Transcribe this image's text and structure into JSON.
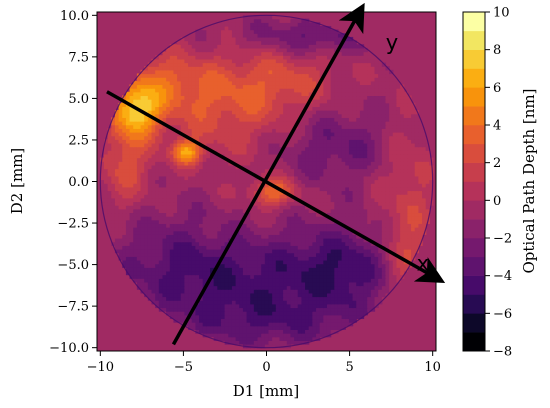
{
  "chart_data": {
    "type": "heatmap",
    "xlabel": "D1 [mm]",
    "ylabel": "D2 [mm]",
    "colorbar_label": "Optical Path Depth [nm]",
    "xlim": [
      -10.2,
      10.2
    ],
    "ylim": [
      -10.2,
      10.2
    ],
    "x_ticks": [
      -10,
      -5,
      0,
      5,
      10
    ],
    "x_tick_labels": [
      "−10",
      "−5",
      "0",
      "5",
      "10"
    ],
    "y_ticks": [
      10,
      7.5,
      5,
      2.5,
      0,
      -2.5,
      -5,
      -7.5,
      -10
    ],
    "y_tick_labels": [
      "10.0",
      "7.5",
      "5.0",
      "2.5",
      "0.0",
      "−2.5",
      "−5.0",
      "−7.5",
      "−10.0"
    ],
    "colorbar_range": [
      -8,
      10
    ],
    "colorbar_ticks": [
      10,
      8,
      6,
      4,
      2,
      0,
      -2,
      -4,
      -6,
      -8
    ],
    "colorbar_tick_labels": [
      "10",
      "8",
      "6",
      "4",
      "2",
      "0",
      "−2",
      "−4",
      "−6",
      "−8"
    ],
    "colorbar_levels": [
      -8,
      -7,
      -6,
      -5,
      -4,
      -3,
      -2,
      -1,
      0,
      1,
      2,
      3,
      4,
      5,
      6,
      7,
      8,
      9,
      10
    ],
    "colorbar_colors": [
      "#000004",
      "#0d0829",
      "#280b53",
      "#470b6a",
      "#5f136e",
      "#75196e",
      "#8a226a",
      "#a02a63",
      "#b5325a",
      "#c73e4c",
      "#d94d3d",
      "#e8602d",
      "#f1781b",
      "#f8930c",
      "#fbae12",
      "#f8cb34",
      "#f2e661",
      "#fcffa4"
    ],
    "background_depth": -0.5,
    "aperture": {
      "center": [
        0,
        0
      ],
      "radius": 10
    },
    "arrows": [
      {
        "label": "x",
        "from": [
          -9.6,
          5.4
        ],
        "to": [
          10.2,
          -5.8
        ]
      },
      {
        "label": "y",
        "from": [
          -5.6,
          -9.8
        ],
        "to": [
          5.6,
          10.2
        ]
      }
    ],
    "depth_features": [
      {
        "x": -7.8,
        "y": 4.3,
        "value": 6.5,
        "sx": 1.0,
        "sy": 1.0
      },
      {
        "x": -4.8,
        "y": 1.8,
        "value": 6.0,
        "sx": 0.6,
        "sy": 0.5
      },
      {
        "x": -6.5,
        "y": 6.0,
        "value": 3.2,
        "sx": 2.0,
        "sy": 1.2
      },
      {
        "x": -8.5,
        "y": 1.5,
        "value": 3.0,
        "sx": 1.1,
        "sy": 2.2
      },
      {
        "x": 0.4,
        "y": -0.6,
        "value": 4.5,
        "sx": 1.0,
        "sy": 0.6
      },
      {
        "x": -2.5,
        "y": 4.5,
        "value": 3.0,
        "sx": 3.0,
        "sy": 2.0
      },
      {
        "x": 1.0,
        "y": 6.2,
        "value": 2.2,
        "sx": 2.5,
        "sy": 1.4
      },
      {
        "x": 8.5,
        "y": -4.8,
        "value": 3.5,
        "sx": 1.3,
        "sy": 2.0
      },
      {
        "x": 8.5,
        "y": 0.5,
        "value": 2.0,
        "sx": 1.2,
        "sy": 2.5
      },
      {
        "x": -2.5,
        "y": -5.8,
        "value": -3.5,
        "sx": 4.0,
        "sy": 1.8
      },
      {
        "x": 4.8,
        "y": -5.2,
        "value": -4.0,
        "sx": 2.8,
        "sy": 1.8
      },
      {
        "x": 4.2,
        "y": 2.2,
        "value": -2.5,
        "sx": 2.5,
        "sy": 1.6
      },
      {
        "x": -6.0,
        "y": -3.8,
        "value": -1.5,
        "sx": 2.5,
        "sy": 2.0
      },
      {
        "x": 3.0,
        "y": 8.8,
        "value": -2.8,
        "sx": 3.0,
        "sy": 0.8
      },
      {
        "x": 0.0,
        "y": -8.5,
        "value": -2.5,
        "sx": 4.0,
        "sy": 1.2
      }
    ]
  }
}
